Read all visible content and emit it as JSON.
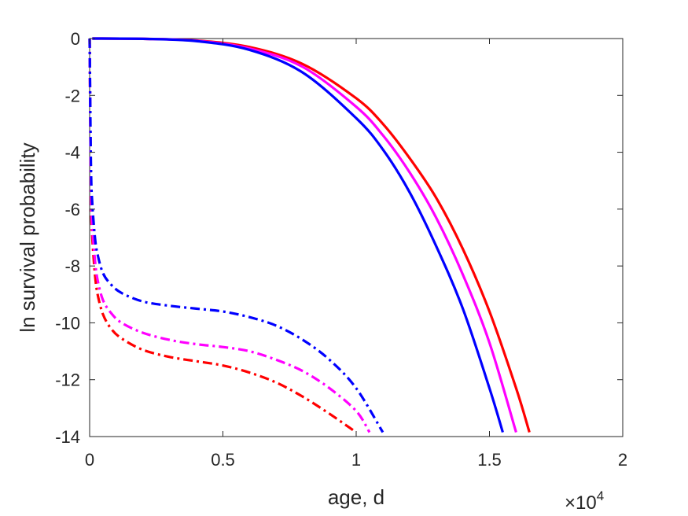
{
  "chart_data": {
    "type": "line",
    "title": "",
    "xlabel": "age, d",
    "ylabel": "ln survival probability",
    "x_exponent_label": "×10",
    "x_exponent_power": "4",
    "xlim": [
      0,
      2
    ],
    "ylim": [
      -14,
      0
    ],
    "x_ticks": [
      "0",
      "0.5",
      "1",
      "1.5",
      "2"
    ],
    "y_ticks": [
      "0",
      "-2",
      "-4",
      "-6",
      "-8",
      "-10",
      "-12",
      "-14"
    ],
    "grid": false,
    "legend": "none",
    "series": [
      {
        "color": "#ff0000",
        "dash": "solid",
        "x": [
          0.01,
          0.2,
          0.4,
          0.6,
          0.8,
          1.0,
          1.1,
          1.2,
          1.3,
          1.4,
          1.5,
          1.6,
          1.65
        ],
        "y": [
          0,
          -0.01,
          -0.07,
          -0.3,
          -0.9,
          -2.1,
          -3.0,
          -4.2,
          -5.6,
          -7.4,
          -9.6,
          -12.3,
          -13.85
        ]
      },
      {
        "color": "#ff00ff",
        "dash": "solid",
        "x": [
          0.01,
          0.2,
          0.4,
          0.6,
          0.8,
          1.0,
          1.1,
          1.2,
          1.3,
          1.4,
          1.5,
          1.6
        ],
        "y": [
          0,
          -0.01,
          -0.08,
          -0.35,
          -1.0,
          -2.4,
          -3.4,
          -4.7,
          -6.3,
          -8.3,
          -10.7,
          -13.85
        ]
      },
      {
        "color": "#0000ff",
        "dash": "solid",
        "x": [
          0.01,
          0.2,
          0.4,
          0.6,
          0.8,
          1.0,
          1.1,
          1.2,
          1.3,
          1.4,
          1.5,
          1.55
        ],
        "y": [
          0,
          -0.01,
          -0.09,
          -0.4,
          -1.2,
          -2.8,
          -3.9,
          -5.4,
          -7.3,
          -9.5,
          -12.3,
          -13.85
        ]
      },
      {
        "color": "#ff0000",
        "dash": "dashdot",
        "x": [
          0.0,
          0.005,
          0.01,
          0.02,
          0.03,
          0.05,
          0.08,
          0.12,
          0.2,
          0.3,
          0.4,
          0.5,
          0.6,
          0.7,
          0.8,
          0.9,
          1.0
        ],
        "y": [
          0,
          -5.5,
          -7.0,
          -8.3,
          -9.0,
          -9.7,
          -10.2,
          -10.55,
          -10.95,
          -11.2,
          -11.35,
          -11.5,
          -11.75,
          -12.1,
          -12.6,
          -13.2,
          -13.85
        ]
      },
      {
        "color": "#ff00ff",
        "dash": "dashdot",
        "x": [
          0.0,
          0.005,
          0.01,
          0.02,
          0.03,
          0.05,
          0.08,
          0.12,
          0.2,
          0.3,
          0.4,
          0.5,
          0.6,
          0.7,
          0.8,
          0.9,
          1.0,
          1.05
        ],
        "y": [
          0,
          -5.2,
          -6.6,
          -7.8,
          -8.5,
          -9.2,
          -9.65,
          -10.0,
          -10.35,
          -10.6,
          -10.75,
          -10.85,
          -11.0,
          -11.3,
          -11.7,
          -12.3,
          -13.1,
          -13.85
        ]
      },
      {
        "color": "#0000ff",
        "dash": "dashdot",
        "x": [
          0.0,
          0.005,
          0.01,
          0.02,
          0.03,
          0.05,
          0.08,
          0.12,
          0.2,
          0.3,
          0.4,
          0.5,
          0.6,
          0.7,
          0.8,
          0.9,
          1.0,
          1.1
        ],
        "y": [
          0,
          -4.5,
          -5.8,
          -7.0,
          -7.6,
          -8.25,
          -8.65,
          -8.95,
          -9.25,
          -9.4,
          -9.5,
          -9.6,
          -9.8,
          -10.1,
          -10.6,
          -11.3,
          -12.3,
          -13.85
        ]
      }
    ]
  }
}
